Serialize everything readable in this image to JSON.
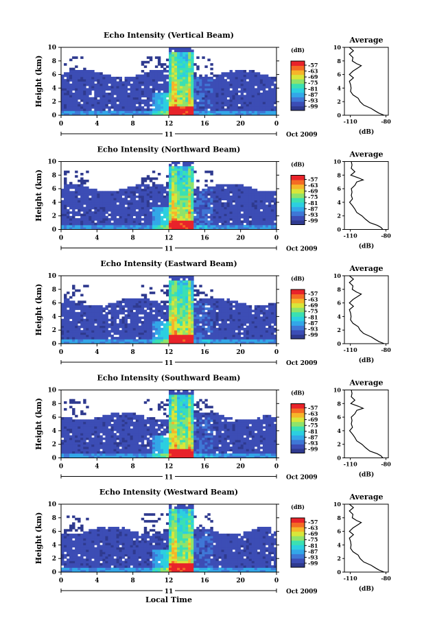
{
  "chart_data": {
    "type": "heatmap",
    "panels": [
      {
        "title": "Echo Intensity (Vertical Beam)"
      },
      {
        "title": "Echo Intensity (Northward Beam)"
      },
      {
        "title": "Echo Intensity (Eastward Beam)"
      },
      {
        "title": "Echo Intensity (Southward Beam)"
      },
      {
        "title": "Echo Intensity (Westward Beam)"
      }
    ],
    "ylabel": "Height (km)",
    "xlabel": "Local Time",
    "xlim": [
      0,
      24
    ],
    "ylim": [
      0,
      10
    ],
    "x_ticks": [
      "0",
      "4",
      "8",
      "12",
      "16",
      "20",
      "0"
    ],
    "y_ticks": [
      "0",
      "2",
      "4",
      "6",
      "8",
      "10"
    ],
    "day_label": "11",
    "date_label": "Oct 2009",
    "colorbar": {
      "unit": "(dB)",
      "ticks": [
        "-57",
        "-63",
        "-69",
        "-75",
        "-81",
        "-87",
        "-93",
        "-99"
      ],
      "colors": [
        "#2f3a8f",
        "#3c4db5",
        "#3f77d6",
        "#33a7e8",
        "#2ccfe0",
        "#3be0b2",
        "#8fe36a",
        "#d8e63a",
        "#f6b52a",
        "#f46b24",
        "#e8232a"
      ]
    },
    "average_profile": {
      "title": "Average",
      "xlabel": "(dB)",
      "x_ticks": [
        "-110",
        "-80"
      ],
      "xlim": [
        -115,
        -78
      ],
      "heights_km": [
        0.0,
        0.3,
        0.6,
        1.0,
        1.5,
        2.0,
        2.5,
        3.0,
        3.5,
        4.0,
        4.5,
        5.0,
        5.5,
        6.0,
        6.5,
        7.0,
        7.3,
        7.6,
        8.0,
        8.5,
        9.0,
        9.5,
        10.0
      ],
      "values_db": [
        -82,
        -85,
        -88,
        -93,
        -98,
        -101,
        -104,
        -107,
        -109,
        -110,
        -109,
        -110,
        -108,
        -110,
        -107,
        -104,
        -100,
        -104,
        -109,
        -107,
        -110,
        -108,
        -110
      ]
    }
  }
}
